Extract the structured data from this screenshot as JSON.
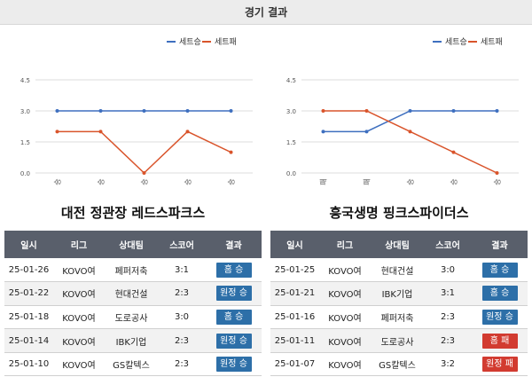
{
  "header": {
    "title": "경기 결과"
  },
  "colors": {
    "win": "#3e6fbf",
    "loss": "#d9542b",
    "win_badge": "#2d6fa8",
    "loss_badge": "#d23b30"
  },
  "chart_data": [
    {
      "type": "line",
      "title": "대전 정관장 레드스파크스",
      "categories": [
        "승",
        "승",
        "승",
        "승",
        "승"
      ],
      "yticks": [
        "0.0",
        "1.5",
        "3.0",
        "4.5"
      ],
      "ylim": [
        0,
        4.5
      ],
      "legend_position": "top-right",
      "series": [
        {
          "name": "세트승",
          "color": "#3e6fbf",
          "values": [
            3,
            3,
            3,
            3,
            3
          ]
        },
        {
          "name": "세트패",
          "color": "#d9542b",
          "values": [
            2,
            2,
            0,
            2,
            1
          ]
        }
      ]
    },
    {
      "type": "line",
      "title": "흥국생명 핑크스파이더스",
      "categories": [
        "패",
        "패",
        "승",
        "승",
        "승"
      ],
      "yticks": [
        "0.0",
        "1.5",
        "3.0",
        "4.5"
      ],
      "ylim": [
        0,
        4.5
      ],
      "legend_position": "top-right",
      "series": [
        {
          "name": "세트승",
          "color": "#3e6fbf",
          "values": [
            2,
            2,
            3,
            3,
            3
          ]
        },
        {
          "name": "세트패",
          "color": "#d9542b",
          "values": [
            3,
            3,
            2,
            1,
            0
          ]
        }
      ]
    }
  ],
  "table_headers": [
    "일시",
    "리그",
    "상대팀",
    "스코어",
    "결과"
  ],
  "tables": [
    {
      "rows": [
        {
          "date": "25-01-26",
          "league": "KOVO여",
          "opponent": "페퍼저축",
          "score": "3:1",
          "result": "홈 승",
          "outcome": "win"
        },
        {
          "date": "25-01-22",
          "league": "KOVO여",
          "opponent": "현대건설",
          "score": "2:3",
          "result": "원정 승",
          "outcome": "win"
        },
        {
          "date": "25-01-18",
          "league": "KOVO여",
          "opponent": "도로공사",
          "score": "3:0",
          "result": "홈 승",
          "outcome": "win"
        },
        {
          "date": "25-01-14",
          "league": "KOVO여",
          "opponent": "IBK기업",
          "score": "2:3",
          "result": "원정 승",
          "outcome": "win"
        },
        {
          "date": "25-01-10",
          "league": "KOVO여",
          "opponent": "GS칼텍스",
          "score": "2:3",
          "result": "원정 승",
          "outcome": "win"
        }
      ]
    },
    {
      "rows": [
        {
          "date": "25-01-25",
          "league": "KOVO여",
          "opponent": "현대건설",
          "score": "3:0",
          "result": "홈 승",
          "outcome": "win"
        },
        {
          "date": "25-01-21",
          "league": "KOVO여",
          "opponent": "IBK기업",
          "score": "3:1",
          "result": "홈 승",
          "outcome": "win"
        },
        {
          "date": "25-01-16",
          "league": "KOVO여",
          "opponent": "페퍼저축",
          "score": "2:3",
          "result": "원정 승",
          "outcome": "win"
        },
        {
          "date": "25-01-11",
          "league": "KOVO여",
          "opponent": "도로공사",
          "score": "2:3",
          "result": "홈 패",
          "outcome": "loss"
        },
        {
          "date": "25-01-07",
          "league": "KOVO여",
          "opponent": "GS칼텍스",
          "score": "3:2",
          "result": "원정 패",
          "outcome": "loss"
        }
      ]
    }
  ]
}
